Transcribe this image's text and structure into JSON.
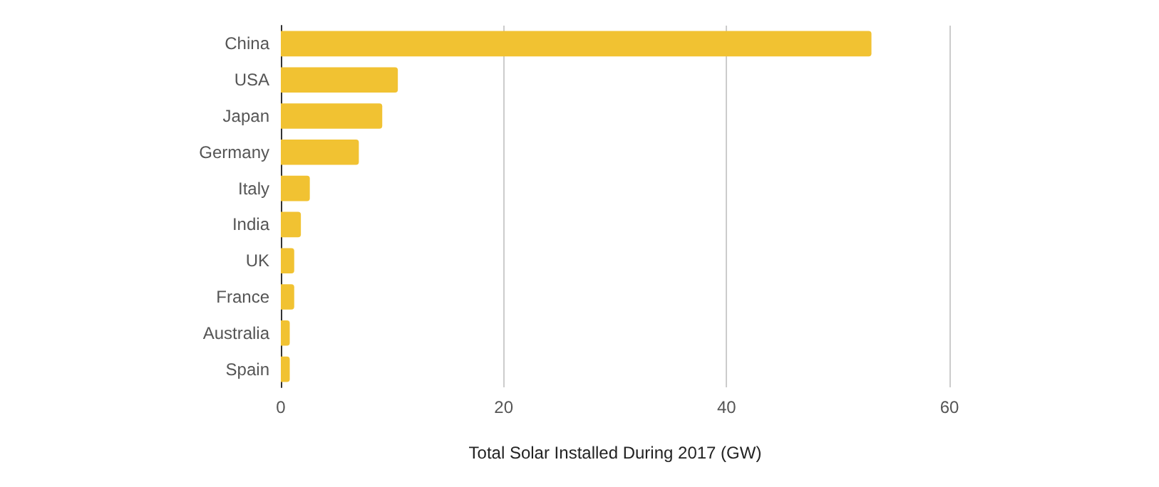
{
  "chart_data": {
    "type": "bar",
    "orientation": "horizontal",
    "xlabel": "Total Solar Installed During 2017 (GW)",
    "categories": [
      "China",
      "USA",
      "Japan",
      "Germany",
      "Italy",
      "India",
      "UK",
      "France",
      "Australia",
      "Spain"
    ],
    "values": [
      53,
      10.5,
      9.1,
      7,
      2.6,
      1.8,
      1.2,
      1.2,
      0.8,
      0.8
    ],
    "color": "#f1c232",
    "xlim": [
      0,
      60
    ],
    "xticks": [
      0,
      20,
      40,
      60
    ],
    "grid": "x"
  }
}
